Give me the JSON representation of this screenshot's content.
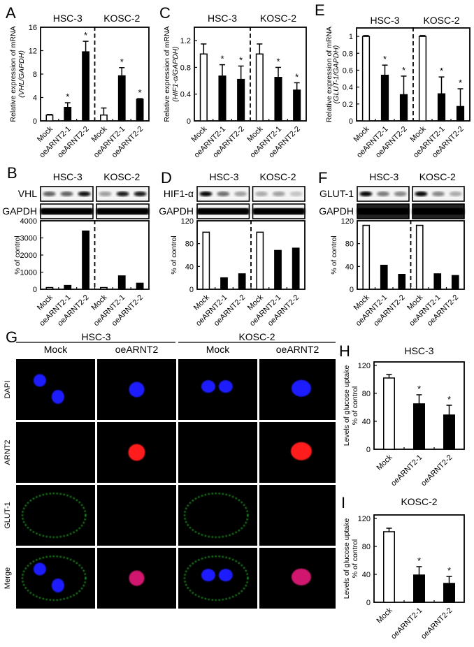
{
  "colors": {
    "filled_bar": "#000000",
    "open_bar": "#ffffff",
    "dapi": "#1a1aff",
    "arnt2": "#ff1a1a",
    "glut1": "#2bd42b",
    "merge_nucleus": "#d0186e"
  },
  "chart_data": [
    {
      "panel": "A",
      "type": "bar",
      "groups": [
        "HSC-3",
        "KOSC-2"
      ],
      "categories": [
        "Mock",
        "oeARNT2-1",
        "oeARNT2-2",
        "Mock",
        "oeARNT2-1",
        "oeARNT2-2"
      ],
      "values": [
        1.0,
        2.3,
        11.8,
        1.0,
        7.7,
        3.7
      ],
      "errors": [
        0.1,
        0.8,
        1.8,
        1.2,
        1.4,
        0.1
      ],
      "significant": [
        false,
        true,
        true,
        false,
        true,
        true
      ],
      "ylabel": "Relative expression of mRNA",
      "ylabel2": "(VHL/GAPDH)",
      "yticks": [
        0,
        4,
        8,
        12,
        16
      ],
      "ylim": [
        0,
        16
      ],
      "grid": false
    },
    {
      "panel": "C",
      "type": "bar",
      "groups": [
        "HSC-3",
        "KOSC-2"
      ],
      "categories": [
        "Mock",
        "oeARNT2-1",
        "oeARNT2-2",
        "Mock",
        "oeARNT2-1",
        "oeARNT2-2"
      ],
      "values": [
        1.0,
        0.67,
        0.62,
        1.0,
        0.65,
        0.46
      ],
      "errors": [
        0.15,
        0.17,
        0.2,
        0.15,
        0.15,
        0.11
      ],
      "significant": [
        false,
        true,
        true,
        false,
        true,
        true
      ],
      "ylabel": "Relative expression of mRNA",
      "ylabel2": "(HIF1-α/GAPDH)",
      "yticks": [
        0,
        0.4,
        0.8,
        1.2
      ],
      "ylim": [
        0,
        1.4
      ],
      "grid": false
    },
    {
      "panel": "E",
      "type": "bar",
      "groups": [
        "HSC-3",
        "KOSC-2"
      ],
      "categories": [
        "Mock",
        "oeARNT2-1",
        "oeARNT2-2",
        "Mock",
        "oeARNT2-1",
        "oeARNT2-2"
      ],
      "values": [
        1.0,
        0.54,
        0.31,
        1.0,
        0.32,
        0.17
      ],
      "errors": [
        0.01,
        0.12,
        0.22,
        0.01,
        0.2,
        0.21
      ],
      "significant": [
        false,
        true,
        true,
        false,
        true,
        true
      ],
      "ylabel": "Relative expression of mRNA",
      "ylabel2": "(GLUT-1/GAPDH)",
      "yticks": [
        0,
        0.2,
        0.4,
        0.6,
        0.8,
        1
      ],
      "ylim": [
        0,
        1.1
      ],
      "grid": false
    },
    {
      "panel": "B",
      "type": "bar",
      "groups": [
        "HSC-3",
        "KOSC-2"
      ],
      "categories": [
        "Mock",
        "oeARNT2-1",
        "oeARNT2-2",
        "Mock",
        "oeARNT2-1",
        "oeARNT2-2"
      ],
      "values": [
        100,
        220,
        3400,
        100,
        780,
        350
      ],
      "ylabel": "% of control",
      "yticks": [
        0,
        1000,
        2000,
        3000,
        4000
      ],
      "ylim": [
        0,
        4000
      ],
      "grid": false,
      "blot_rows": [
        "VHL",
        "GAPDH"
      ]
    },
    {
      "panel": "D",
      "type": "bar",
      "groups": [
        "HSC-3",
        "KOSC-2"
      ],
      "categories": [
        "Mock",
        "oeARNT2-1",
        "oeARNT2-2",
        "Mock",
        "oeARNT2-1",
        "oeARNT2-2"
      ],
      "values": [
        100,
        20,
        27,
        100,
        68,
        72
      ],
      "ylabel": "% of control",
      "yticks": [
        0,
        40,
        80,
        120
      ],
      "ylim": [
        0,
        120
      ],
      "grid": false,
      "blot_rows": [
        "HIF1-α",
        "GAPDH"
      ]
    },
    {
      "panel": "F",
      "type": "bar",
      "groups": [
        "HSC-3",
        "KOSC-2"
      ],
      "categories": [
        "Mock",
        "oeARNT2-1",
        "oeARNT2-2",
        "Mock",
        "oeARNT2-1",
        "oeARNT2-2"
      ],
      "values": [
        112,
        42,
        26,
        112,
        27,
        24
      ],
      "ylabel": "% of control",
      "yticks": [
        0,
        40,
        80,
        120
      ],
      "ylim": [
        0,
        120
      ],
      "grid": false,
      "blot_rows": [
        "GLUT-1",
        "GAPDH"
      ]
    },
    {
      "panel": "H",
      "type": "bar",
      "title": "HSC-3",
      "categories": [
        "Mock",
        "oeARNT2-1",
        "oeARNT2-2"
      ],
      "values": [
        102,
        65,
        49
      ],
      "errors": [
        5,
        13,
        14
      ],
      "significant": [
        false,
        true,
        true
      ],
      "ylabel": "Levels of glucose uptake",
      "ylabel2": "% of control",
      "yticks": [
        0,
        40,
        80,
        120
      ],
      "ylim": [
        0,
        125
      ],
      "grid": false
    },
    {
      "panel": "I",
      "type": "bar",
      "title": "KOSC-2",
      "categories": [
        "Mock",
        "oeARNT2-1",
        "oeARNT2-2"
      ],
      "values": [
        101,
        39,
        27
      ],
      "errors": [
        5,
        12,
        10
      ],
      "significant": [
        false,
        true,
        true
      ],
      "ylabel": "Levels of glucose uptake",
      "ylabel2": "% of control",
      "yticks": [
        0,
        40,
        80,
        120
      ],
      "ylim": [
        0,
        125
      ],
      "grid": false
    }
  ],
  "microscopy": {
    "panel": "G",
    "groups": [
      "HSC-3",
      "KOSC-2"
    ],
    "columns": [
      "Mock",
      "oeARNT2",
      "Mock",
      "oeARNT2"
    ],
    "rows": [
      "DAPI",
      "ARNT2",
      "GLUT-1",
      "Merge"
    ],
    "significance_marker": "*"
  }
}
